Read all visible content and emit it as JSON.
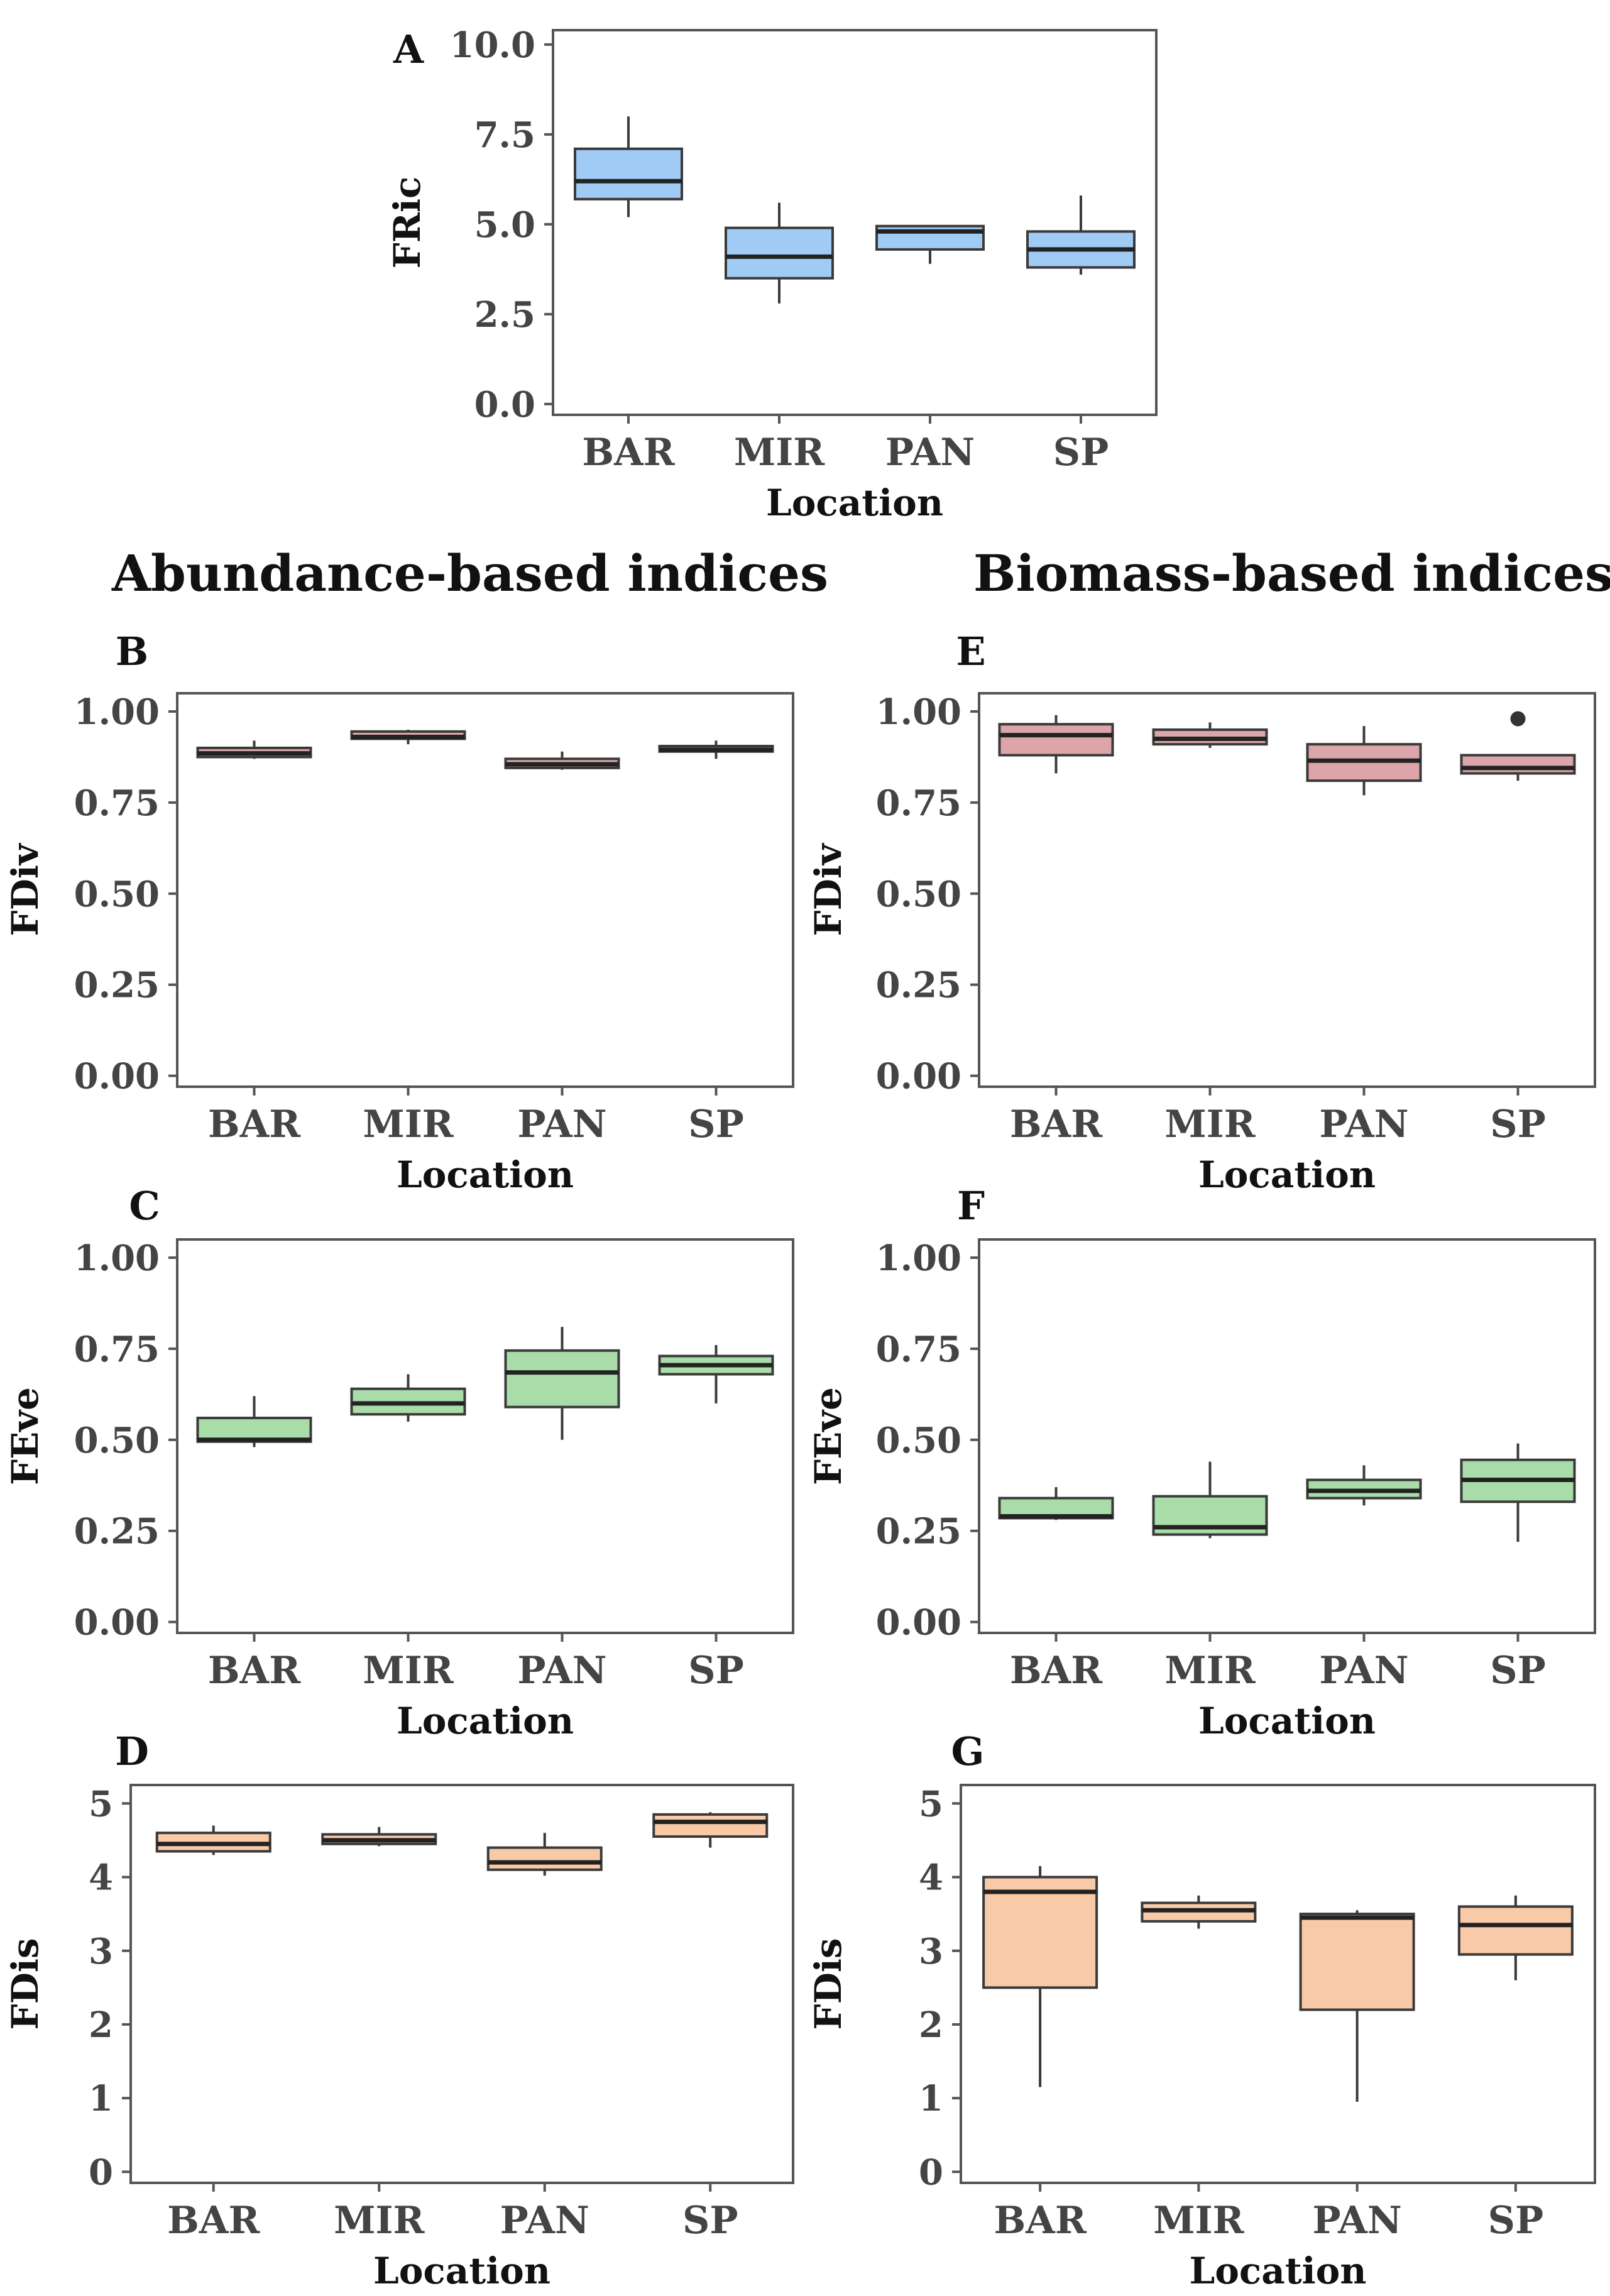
{
  "headings": {
    "abundance": "Abundance-based indices",
    "biomass": "Biomass-based indices"
  },
  "colors": {
    "blue": "#9fcbf5",
    "pink": "#dba5a9",
    "green": "#a9dca8",
    "orange": "#f8caa7",
    "line": "#3a3a3a",
    "axis_text": "#444444"
  },
  "chart_data": [
    {
      "id": "A",
      "type": "box",
      "panel_label": "A",
      "xlabel": "Location",
      "ylabel": "FRic",
      "categories": [
        "BAR",
        "MIR",
        "PAN",
        "SP"
      ],
      "ylim": [
        -0.3,
        10.4
      ],
      "ticks": [
        0.0,
        2.5,
        5.0,
        7.5,
        10.0
      ],
      "tick_labels": [
        "0.0",
        "2.5",
        "5.0",
        "7.5",
        "10.0"
      ],
      "color": "blue",
      "boxes": [
        {
          "min": 5.2,
          "q1": 5.7,
          "median": 6.2,
          "q3": 7.1,
          "max": 8.0
        },
        {
          "min": 2.8,
          "q1": 3.5,
          "median": 4.1,
          "q3": 4.9,
          "max": 5.6
        },
        {
          "min": 3.9,
          "q1": 4.3,
          "median": 4.8,
          "q3": 4.95,
          "max": 4.95
        },
        {
          "min": 3.6,
          "q1": 3.8,
          "median": 4.3,
          "q3": 4.8,
          "max": 5.8
        }
      ],
      "outliers": []
    },
    {
      "id": "B",
      "type": "box",
      "panel_label": "B",
      "xlabel": "Location",
      "ylabel": "FDiv",
      "categories": [
        "BAR",
        "MIR",
        "PAN",
        "SP"
      ],
      "ylim": [
        -0.03,
        1.05
      ],
      "ticks": [
        0.0,
        0.25,
        0.5,
        0.75,
        1.0
      ],
      "tick_labels": [
        "0.00",
        "0.25",
        "0.50",
        "0.75",
        "1.00"
      ],
      "color": "pink",
      "boxes": [
        {
          "min": 0.87,
          "q1": 0.875,
          "median": 0.885,
          "q3": 0.9,
          "max": 0.92
        },
        {
          "min": 0.91,
          "q1": 0.925,
          "median": 0.93,
          "q3": 0.945,
          "max": 0.95
        },
        {
          "min": 0.84,
          "q1": 0.845,
          "median": 0.855,
          "q3": 0.87,
          "max": 0.89
        },
        {
          "min": 0.87,
          "q1": 0.89,
          "median": 0.895,
          "q3": 0.905,
          "max": 0.92
        }
      ],
      "outliers": []
    },
    {
      "id": "C",
      "type": "box",
      "panel_label": "C",
      "xlabel": "Location",
      "ylabel": "FEve",
      "categories": [
        "BAR",
        "MIR",
        "PAN",
        "SP"
      ],
      "ylim": [
        -0.03,
        1.05
      ],
      "ticks": [
        0.0,
        0.25,
        0.5,
        0.75,
        1.0
      ],
      "tick_labels": [
        "0.00",
        "0.25",
        "0.50",
        "0.75",
        "1.00"
      ],
      "color": "green",
      "boxes": [
        {
          "min": 0.48,
          "q1": 0.495,
          "median": 0.5,
          "q3": 0.56,
          "max": 0.62
        },
        {
          "min": 0.55,
          "q1": 0.57,
          "median": 0.6,
          "q3": 0.64,
          "max": 0.68
        },
        {
          "min": 0.5,
          "q1": 0.59,
          "median": 0.685,
          "q3": 0.745,
          "max": 0.81
        },
        {
          "min": 0.6,
          "q1": 0.68,
          "median": 0.705,
          "q3": 0.73,
          "max": 0.76
        }
      ],
      "outliers": []
    },
    {
      "id": "D",
      "type": "box",
      "panel_label": "D",
      "xlabel": "Location",
      "ylabel": "FDis",
      "categories": [
        "BAR",
        "MIR",
        "PAN",
        "SP"
      ],
      "ylim": [
        -0.15,
        5.25
      ],
      "ticks": [
        0,
        1,
        2,
        3,
        4,
        5
      ],
      "tick_labels": [
        "0",
        "1",
        "2",
        "3",
        "4",
        "5"
      ],
      "color": "orange",
      "boxes": [
        {
          "min": 4.3,
          "q1": 4.35,
          "median": 4.45,
          "q3": 4.6,
          "max": 4.7
        },
        {
          "min": 4.42,
          "q1": 4.45,
          "median": 4.5,
          "q3": 4.58,
          "max": 4.68
        },
        {
          "min": 4.02,
          "q1": 4.1,
          "median": 4.2,
          "q3": 4.4,
          "max": 4.6
        },
        {
          "min": 4.4,
          "q1": 4.55,
          "median": 4.75,
          "q3": 4.85,
          "max": 4.88
        }
      ],
      "outliers": []
    },
    {
      "id": "E",
      "type": "box",
      "panel_label": "E",
      "xlabel": "Location",
      "ylabel": "FDiv",
      "categories": [
        "BAR",
        "MIR",
        "PAN",
        "SP"
      ],
      "ylim": [
        -0.03,
        1.05
      ],
      "ticks": [
        0.0,
        0.25,
        0.5,
        0.75,
        1.0
      ],
      "tick_labels": [
        "0.00",
        "0.25",
        "0.50",
        "0.75",
        "1.00"
      ],
      "color": "pink",
      "boxes": [
        {
          "min": 0.83,
          "q1": 0.88,
          "median": 0.935,
          "q3": 0.965,
          "max": 0.99
        },
        {
          "min": 0.9,
          "q1": 0.91,
          "median": 0.925,
          "q3": 0.95,
          "max": 0.97
        },
        {
          "min": 0.77,
          "q1": 0.81,
          "median": 0.865,
          "q3": 0.91,
          "max": 0.96
        },
        {
          "min": 0.81,
          "q1": 0.83,
          "median": 0.845,
          "q3": 0.88,
          "max": 0.88
        }
      ],
      "outliers": [
        {
          "category": "SP",
          "value": 0.98
        }
      ]
    },
    {
      "id": "F",
      "type": "box",
      "panel_label": "F",
      "xlabel": "Location",
      "ylabel": "FEve",
      "categories": [
        "BAR",
        "MIR",
        "PAN",
        "SP"
      ],
      "ylim": [
        -0.03,
        1.05
      ],
      "ticks": [
        0.0,
        0.25,
        0.5,
        0.75,
        1.0
      ],
      "tick_labels": [
        "0.00",
        "0.25",
        "0.50",
        "0.75",
        "1.00"
      ],
      "color": "green",
      "boxes": [
        {
          "min": 0.28,
          "q1": 0.285,
          "median": 0.29,
          "q3": 0.34,
          "max": 0.37
        },
        {
          "min": 0.23,
          "q1": 0.24,
          "median": 0.26,
          "q3": 0.345,
          "max": 0.44
        },
        {
          "min": 0.32,
          "q1": 0.34,
          "median": 0.36,
          "q3": 0.39,
          "max": 0.43
        },
        {
          "min": 0.22,
          "q1": 0.33,
          "median": 0.39,
          "q3": 0.445,
          "max": 0.49
        }
      ],
      "outliers": []
    },
    {
      "id": "G",
      "type": "box",
      "panel_label": "G",
      "xlabel": "Location",
      "ylabel": "FDis",
      "categories": [
        "BAR",
        "MIR",
        "PAN",
        "SP"
      ],
      "ylim": [
        -0.15,
        5.25
      ],
      "ticks": [
        0,
        1,
        2,
        3,
        4,
        5
      ],
      "tick_labels": [
        "0",
        "1",
        "2",
        "3",
        "4",
        "5"
      ],
      "color": "orange",
      "boxes": [
        {
          "min": 1.15,
          "q1": 2.5,
          "median": 3.8,
          "q3": 4.0,
          "max": 4.15
        },
        {
          "min": 3.3,
          "q1": 3.4,
          "median": 3.55,
          "q3": 3.65,
          "max": 3.75
        },
        {
          "min": 0.95,
          "q1": 2.2,
          "median": 3.45,
          "q3": 3.5,
          "max": 3.55
        },
        {
          "min": 2.6,
          "q1": 2.95,
          "median": 3.35,
          "q3": 3.6,
          "max": 3.75
        }
      ],
      "outliers": []
    }
  ]
}
